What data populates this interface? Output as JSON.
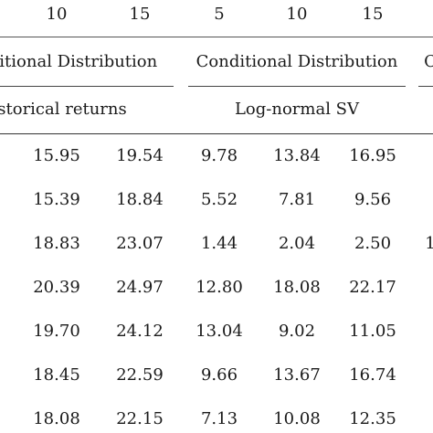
{
  "horizons": [
    "10",
    "15",
    "5",
    "10",
    "15"
  ],
  "groups": [
    {
      "label": "ditional Distribution"
    },
    {
      "label": "Conditional Distribution"
    },
    {
      "label": "C"
    }
  ],
  "models": [
    {
      "label": "storical returns"
    },
    {
      "label": "Log-normal SV"
    }
  ],
  "rows": [
    [
      "15.95",
      "19.54",
      "9.78",
      "13.84",
      "16.95"
    ],
    [
      "15.39",
      "18.84",
      "5.52",
      "7.81",
      "9.56"
    ],
    [
      "18.83",
      "23.07",
      "1.44",
      "2.04",
      "2.50"
    ],
    [
      "20.39",
      "24.97",
      "12.80",
      "18.08",
      "22.17"
    ],
    [
      "19.70",
      "24.12",
      "13.04",
      "9.02",
      "11.05"
    ],
    [
      "18.45",
      "22.59",
      "9.66",
      "13.67",
      "16.74"
    ],
    [
      "18.08",
      "22.15",
      "7.13",
      "10.08",
      "12.35"
    ]
  ],
  "edge_fragments": [
    "1"
  ]
}
